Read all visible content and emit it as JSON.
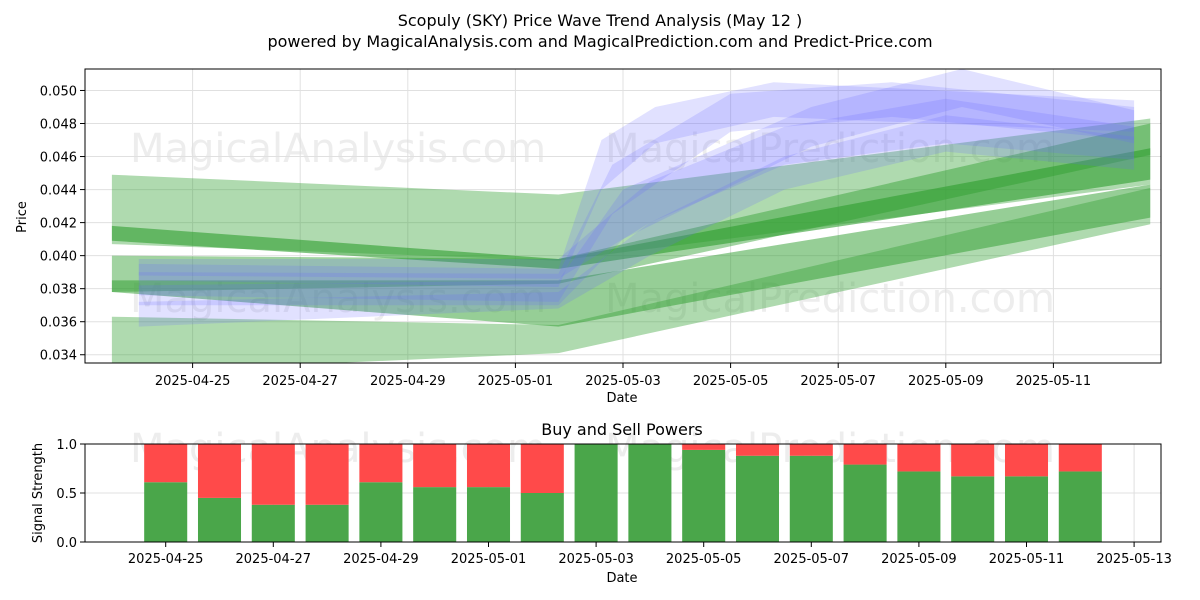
{
  "watermarks": [
    "MagicalAnalysis.com",
    "MagicalPrediction.com"
  ],
  "colors": {
    "green_band": "#2e9e2e",
    "blue_band": "#6b6bff",
    "buy": "#4aa64a",
    "sell": "#ff4a4a",
    "grid": "#e0e0e0"
  },
  "chart_data": [
    {
      "type": "area",
      "title": "Scopuly (SKY) Price Wave Trend Analysis (May 12 )",
      "subtitle": "powered by MagicalAnalysis.com and MagicalPrediction.com and Predict-Price.com",
      "xlabel": "Date",
      "ylabel": "Price",
      "xlim": [
        "2025-04-23",
        "2025-05-13"
      ],
      "ylim": [
        0.0335,
        0.0513
      ],
      "x_ticks": [
        "2025-04-25",
        "2025-04-27",
        "2025-04-29",
        "2025-05-01",
        "2025-05-03",
        "2025-05-05",
        "2025-05-07",
        "2025-05-09",
        "2025-05-11"
      ],
      "y_ticks": [
        "0.034",
        "0.036",
        "0.038",
        "0.040",
        "0.042",
        "0.044",
        "0.046",
        "0.048",
        "0.050"
      ],
      "grid": true,
      "series": [
        {
          "color": "green",
          "x": [
            "2025-04-23.5",
            "2025-05-01.8",
            "2025-05-12.8"
          ],
          "upper": [
            0.0449,
            0.0437,
            0.0483
          ],
          "lower": [
            0.0407,
            0.0397,
            0.0443
          ]
        },
        {
          "color": "green",
          "x": [
            "2025-04-23.5",
            "2025-05-01.8",
            "2025-05-12.8"
          ],
          "upper": [
            0.0418,
            0.0398,
            0.0465
          ],
          "lower": [
            0.0409,
            0.0392,
            0.0446
          ]
        },
        {
          "color": "green",
          "x": [
            "2025-04-23.5",
            "2025-05-01.8",
            "2025-05-12.8"
          ],
          "upper": [
            0.0385,
            0.0385,
            0.0443
          ],
          "lower": [
            0.0378,
            0.0357,
            0.0423
          ]
        },
        {
          "color": "green",
          "x": [
            "2025-04-23.5",
            "2025-05-01.8",
            "2025-05-12.8"
          ],
          "upper": [
            0.0363,
            0.0358,
            0.0441
          ],
          "lower": [
            0.0329,
            0.0341,
            0.0419
          ]
        },
        {
          "color": "green",
          "x": [
            "2025-04-23.5",
            "2025-05-01.8",
            "2025-05-12.8"
          ],
          "upper": [
            0.04,
            0.0398,
            0.048
          ],
          "lower": [
            0.0378,
            0.0383,
            0.0461
          ]
        },
        {
          "color": "blue",
          "x": [
            "2025-04-24",
            "2025-05-01.8",
            "2025-05-02.6",
            "2025-05-03.6",
            "2025-05-05.8",
            "2025-05-12.5"
          ],
          "upper": [
            0.0395,
            0.0392,
            0.047,
            0.049,
            0.0505,
            0.0494
          ],
          "lower": [
            0.0385,
            0.0381,
            0.044,
            0.0468,
            0.0484,
            0.0475
          ]
        },
        {
          "color": "blue",
          "x": [
            "2025-04-24",
            "2025-05-01.8",
            "2025-05-02.8",
            "2025-05-05",
            "2025-05-08",
            "2025-05-12.5"
          ],
          "upper": [
            0.039,
            0.0389,
            0.0455,
            0.0498,
            0.0505,
            0.049
          ],
          "lower": [
            0.0376,
            0.0372,
            0.0425,
            0.0475,
            0.0484,
            0.047
          ]
        },
        {
          "color": "blue",
          "x": [
            "2025-04-24",
            "2025-05-01.8",
            "2025-05-03",
            "2025-05-06.5",
            "2025-05-09.3",
            "2025-05-12.5"
          ],
          "upper": [
            0.0382,
            0.0385,
            0.044,
            0.049,
            0.0513,
            0.0488
          ],
          "lower": [
            0.037,
            0.037,
            0.041,
            0.0466,
            0.049,
            0.0468
          ]
        },
        {
          "color": "blue",
          "x": [
            "2025-04-24",
            "2025-05-01.8",
            "2025-05-03.5",
            "2025-05-06",
            "2025-05-09",
            "2025-05-12.5"
          ],
          "upper": [
            0.0398,
            0.0398,
            0.0445,
            0.0478,
            0.0495,
            0.0478
          ],
          "lower": [
            0.0388,
            0.0386,
            0.042,
            0.0455,
            0.0468,
            0.0458
          ]
        },
        {
          "color": "blue",
          "x": [
            "2025-04-24",
            "2025-05-01.8",
            "2025-05-03.5",
            "2025-05-06",
            "2025-05-09",
            "2025-05-12.5"
          ],
          "upper": [
            0.0372,
            0.0378,
            0.042,
            0.046,
            0.0485,
            0.0472
          ],
          "lower": [
            0.0357,
            0.0368,
            0.04,
            0.044,
            0.0463,
            0.0452
          ]
        }
      ]
    },
    {
      "type": "bar",
      "title": "Buy and Sell Powers",
      "xlabel": "Date",
      "ylabel": "Signal Strength",
      "xlim": [
        "2025-04-23.5",
        "2025-05-13.5"
      ],
      "ylim": [
        0,
        1
      ],
      "x_ticks": [
        "2025-04-25",
        "2025-04-27",
        "2025-04-29",
        "2025-05-01",
        "2025-05-03",
        "2025-05-05",
        "2025-05-07",
        "2025-05-09",
        "2025-05-11",
        "2025-05-13"
      ],
      "y_ticks": [
        "0.0",
        "0.5",
        "1.0"
      ],
      "categories": [
        "2025-04-25",
        "2025-04-26",
        "2025-04-27",
        "2025-04-28",
        "2025-04-29",
        "2025-04-30",
        "2025-05-01",
        "2025-05-02",
        "2025-05-03",
        "2025-05-04",
        "2025-05-05",
        "2025-05-06",
        "2025-05-07",
        "2025-05-08",
        "2025-05-09",
        "2025-05-10",
        "2025-05-11",
        "2025-05-12"
      ],
      "buy": [
        0.61,
        0.45,
        0.38,
        0.38,
        0.61,
        0.56,
        0.56,
        0.5,
        1.0,
        1.0,
        0.94,
        0.88,
        0.88,
        0.79,
        0.72,
        0.67,
        0.67,
        0.72
      ],
      "sell": [
        0.39,
        0.55,
        0.62,
        0.62,
        0.39,
        0.44,
        0.44,
        0.5,
        0.0,
        0.0,
        0.06,
        0.12,
        0.12,
        0.21,
        0.28,
        0.33,
        0.33,
        0.28
      ]
    }
  ]
}
